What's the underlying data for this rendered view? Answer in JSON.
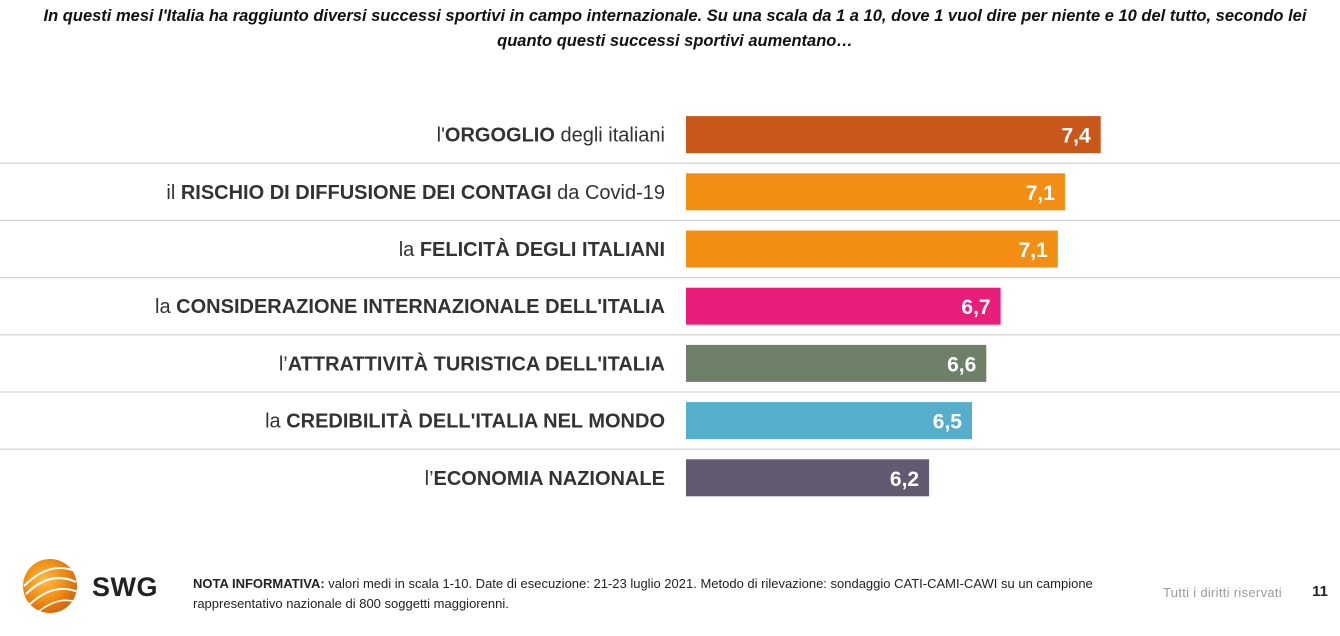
{
  "question": "In questi mesi l'Italia ha raggiunto diversi successi sportivi in campo internazionale. Su una scala da 1 a 10, dove 1 vuol dire per niente e 10 del tutto, secondo lei quanto questi successi sportivi aumentano…",
  "chart_data": {
    "type": "bar",
    "orientation": "horizontal",
    "grid": false,
    "categories": [
      "l'ORGOGLIO degli italiani",
      "il RISCHIO DI DIFFUSIONE DEI CONTAGI da Covid-19",
      "la FELICITÀ DEGLI ITALIANI",
      "la CONSIDERAZIONE INTERNAZIONALE DELL'ITALIA",
      "l’ATTRATTIVITÀ TURISTICA DELL'ITALIA",
      "la CREDIBILITÀ DELL'ITALIA NEL MONDO",
      "l’ECONOMIA NAZIONALE"
    ],
    "category_parts": [
      {
        "pre": "l'",
        "bold": "ORGOGLIO",
        "post": " degli italiani"
      },
      {
        "pre": "il ",
        "bold": "RISCHIO DI DIFFUSIONE DEI CONTAGI",
        "post": " da Covid-19"
      },
      {
        "pre": "la ",
        "bold": "FELICITÀ DEGLI ITALIANI",
        "post": ""
      },
      {
        "pre": "la ",
        "bold": "CONSIDERAZIONE INTERNAZIONALE DELL'ITALIA",
        "post": ""
      },
      {
        "pre": "l’",
        "bold": "ATTRATTIVITÀ TURISTICA DELL'ITALIA",
        "post": ""
      },
      {
        "pre": "la ",
        "bold": "CREDIBILITÀ DELL'ITALIA NEL MONDO",
        "post": ""
      },
      {
        "pre": "l’",
        "bold": "ECONOMIA NAZIONALE",
        "post": ""
      }
    ],
    "values": [
      7.4,
      7.15,
      7.1,
      6.7,
      6.6,
      6.5,
      6.2
    ],
    "value_labels": [
      "7,4",
      "7,1",
      "7,1",
      "6,7",
      "6,6",
      "6,5",
      "6,2"
    ],
    "colors": [
      "#C9571A",
      "#F28E13",
      "#F28E13",
      "#E91E7A",
      "#6F8069",
      "#55AECB",
      "#615A70"
    ],
    "xlim": [
      4.5,
      7.5
    ]
  },
  "footer": {
    "logo_text": "SWG",
    "note_label": "NOTA INFORMATIVA:",
    "note_text": " valori medi in scala 1-10. Date di esecuzione: 21-23 luglio 2021. Metodo di rilevazione: sondaggio CATI-CAMI-CAWI su un campione rappresentativo nazionale di 800 soggetti maggiorenni.",
    "rights": "Tutti i diritti riservati",
    "page_number": "11"
  }
}
